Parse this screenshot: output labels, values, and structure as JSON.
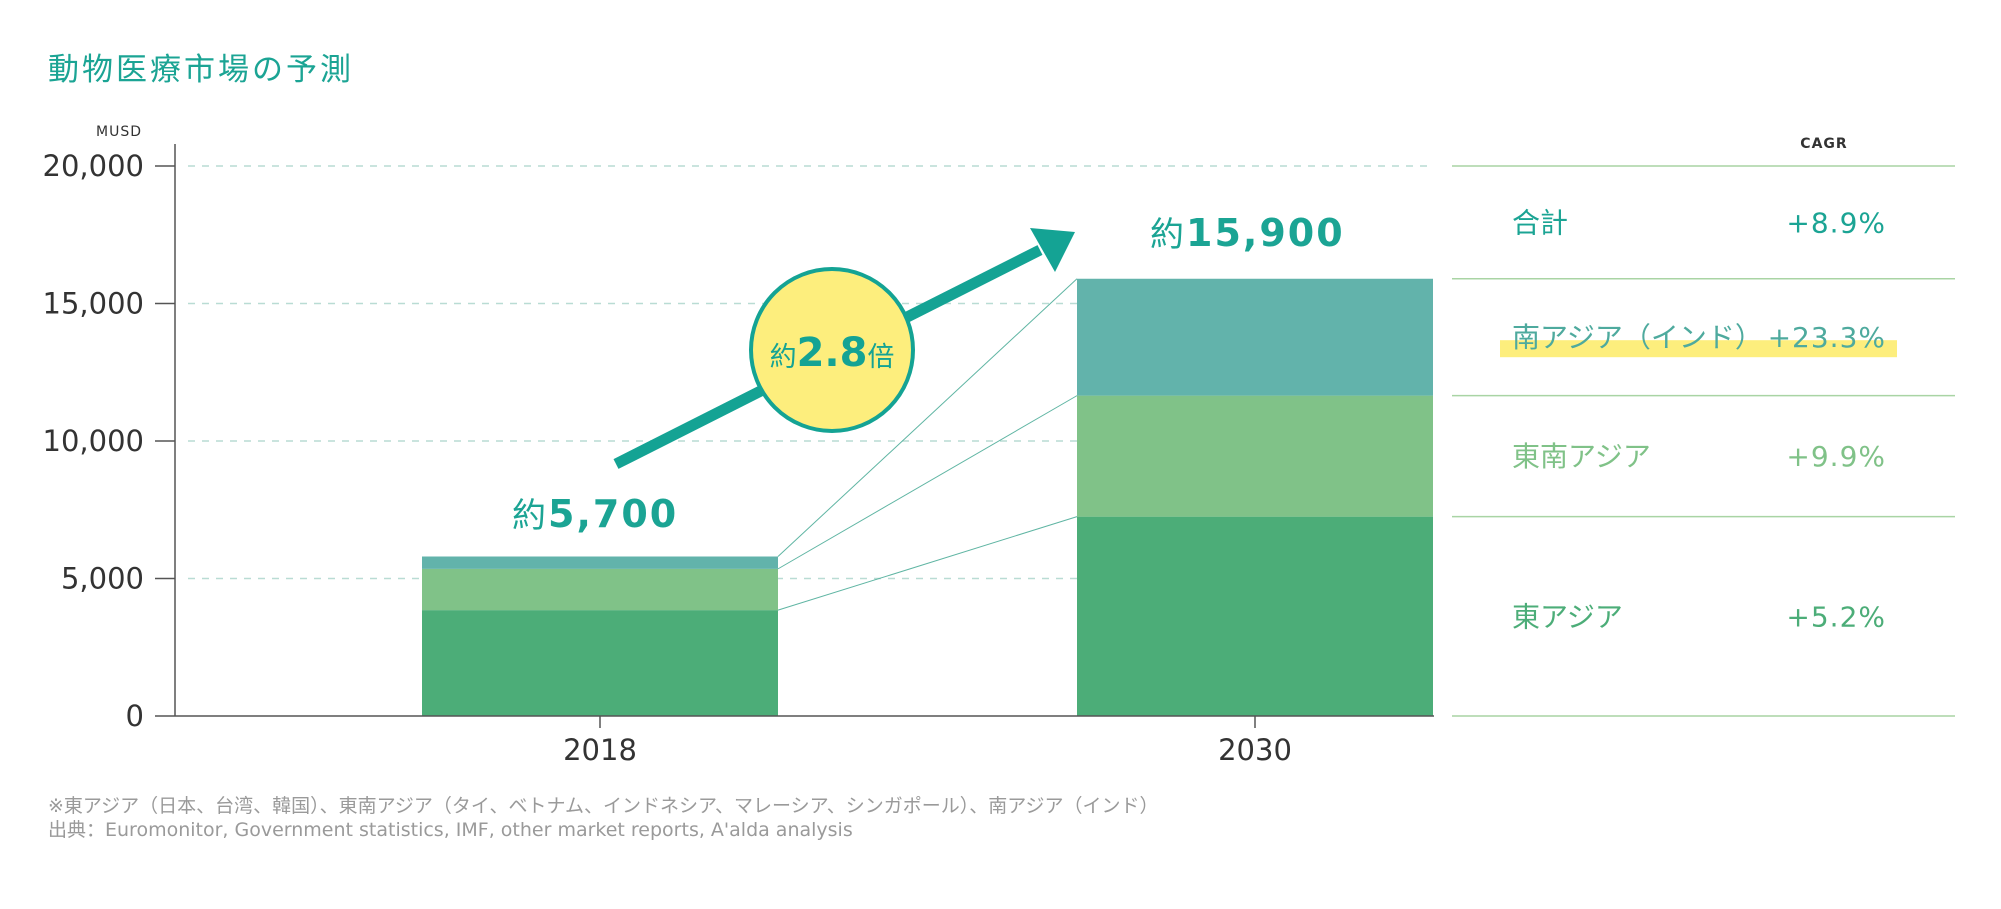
{
  "chart_data": {
    "type": "bar",
    "stacked": true,
    "title": "動物医療市場の予測",
    "ylabel": "MUSD",
    "ylim": [
      0,
      20000
    ],
    "yticks": [
      "0",
      "5,000",
      "10,000",
      "15,000",
      "20,000"
    ],
    "categories": [
      "2018",
      "2030"
    ],
    "series": [
      {
        "name": "東アジア",
        "color": "#4cad78",
        "values": [
          3850,
          7250
        ]
      },
      {
        "name": "東南アジア",
        "color": "#80c288",
        "values": [
          1500,
          4400
        ]
      },
      {
        "name": "南アジア（インド）",
        "color": "#62b3ab",
        "values": [
          450,
          4250
        ]
      }
    ],
    "totals": [
      "約5,700",
      "約15,900"
    ],
    "growth_label": {
      "prefix": "約",
      "value": "2.8",
      "suffix": "倍"
    },
    "cagr_header": "CAGR",
    "cagr_table": [
      {
        "region": "合計",
        "value": "+8.9%",
        "color": "#1ba494"
      },
      {
        "region": "南アジア（インド）",
        "value": "+23.3%",
        "color": "#4eaa9e",
        "highlight": true
      },
      {
        "region": "東南アジア",
        "value": "+9.9%",
        "color": "#80c288"
      },
      {
        "region": "東アジア",
        "value": "+5.2%",
        "color": "#4cad78"
      }
    ],
    "notes": [
      "※東アジア（日本、台湾、韓国）、東南アジア（タイ、ベトナム、インドネシア、マレーシア、シンガポール）、南アジア（インド）",
      "出典：Euromonitor, Government statistics, IMF, other market reports, A'alda analysis"
    ],
    "grid": true
  }
}
